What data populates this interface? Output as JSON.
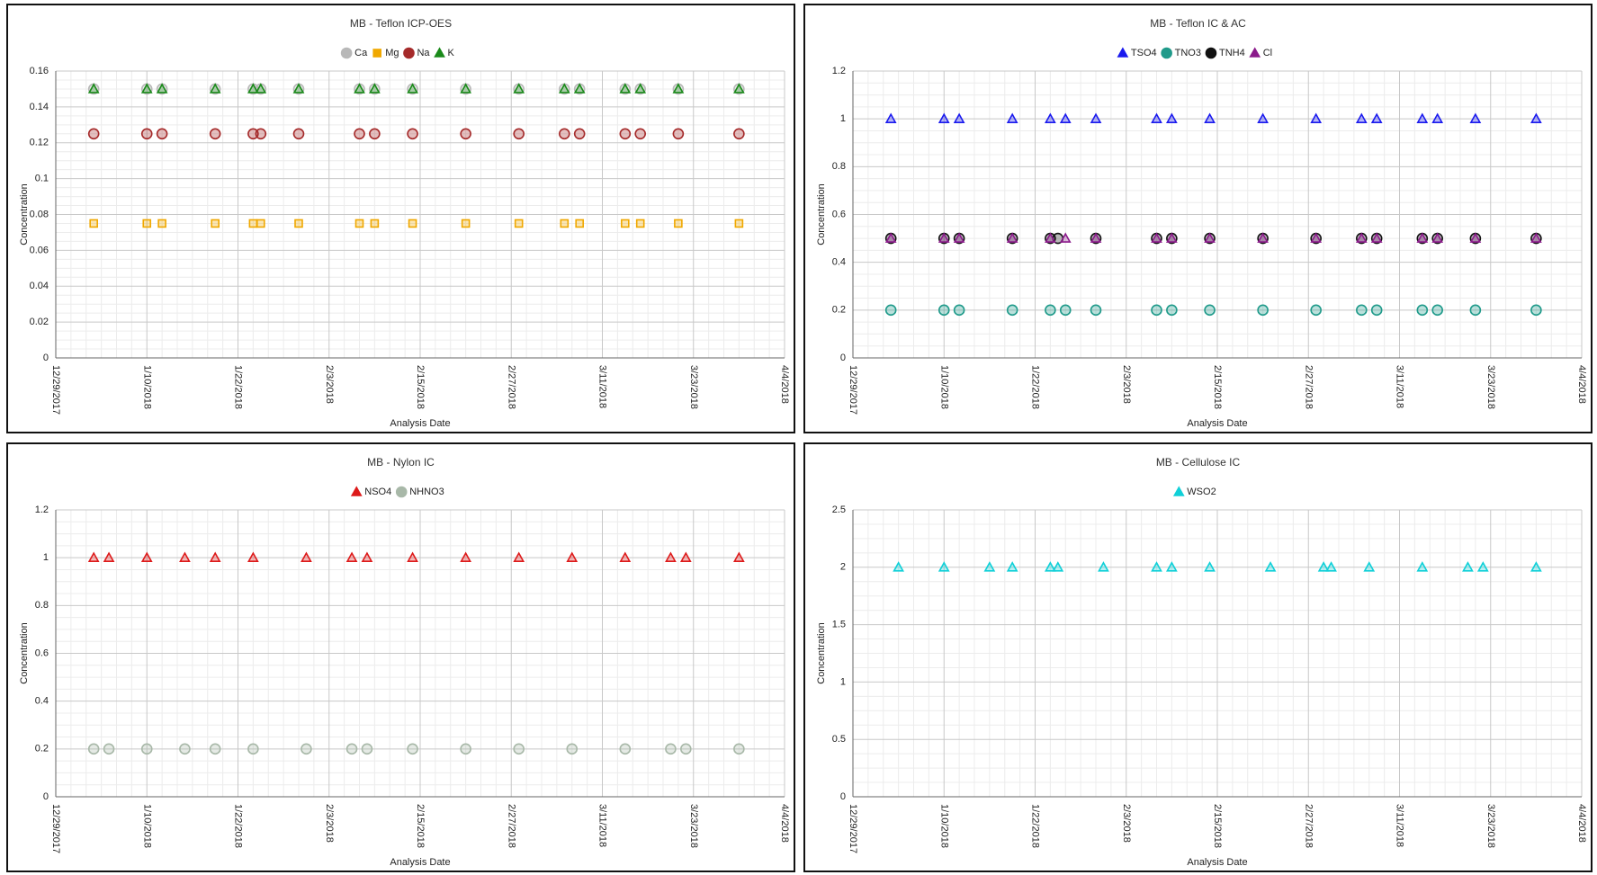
{
  "chart_data": [
    {
      "type": "scatter",
      "title": "MB - Teflon ICP-OES",
      "x_label": "Analysis Date",
      "y_label": "Concentration",
      "x": [
        "1/3/2018",
        "1/10/2018",
        "1/12/2018",
        "1/19/2018",
        "1/24/2018",
        "1/25/2018",
        "1/30/2018",
        "2/7/2018",
        "2/9/2018",
        "2/14/2018",
        "2/21/2018",
        "2/28/2018",
        "3/6/2018",
        "3/8/2018",
        "3/14/2018",
        "3/16/2018",
        "3/21/2018",
        "3/29/2018"
      ],
      "series": [
        {
          "name": "Ca",
          "color": "#b8b8b8",
          "marker": "circle",
          "values": [
            0.15,
            0.15,
            0.15,
            0.15,
            0.15,
            0.15,
            0.15,
            0.15,
            0.15,
            0.15,
            0.15,
            0.15,
            0.15,
            0.15,
            0.15,
            0.15,
            0.15,
            0.15
          ]
        },
        {
          "name": "Mg",
          "color": "#f0a800",
          "marker": "square",
          "values": [
            0.075,
            0.075,
            0.075,
            0.075,
            0.075,
            0.075,
            0.075,
            0.075,
            0.075,
            0.075,
            0.075,
            0.075,
            0.075,
            0.075,
            0.075,
            0.075,
            0.075,
            0.075
          ]
        },
        {
          "name": "Na",
          "color": "#a52a2a",
          "marker": "circle",
          "values": [
            0.125,
            0.125,
            0.125,
            0.125,
            0.125,
            0.125,
            0.125,
            0.125,
            0.125,
            0.125,
            0.125,
            0.125,
            0.125,
            0.125,
            0.125,
            0.125,
            0.125,
            0.125
          ]
        },
        {
          "name": "K",
          "color": "#1a8a1a",
          "marker": "triangle",
          "values": [
            0.15,
            0.15,
            0.15,
            0.15,
            0.15,
            0.15,
            0.15,
            0.15,
            0.15,
            0.15,
            0.15,
            0.15,
            0.15,
            0.15,
            0.15,
            0.15,
            0.15,
            0.15
          ]
        }
      ],
      "xlim": [
        "12/29/2017",
        "4/4/2018"
      ],
      "xticks": [
        "12/29/2017",
        "1/10/2018",
        "1/22/2018",
        "2/3/2018",
        "2/15/2018",
        "2/27/2018",
        "3/11/2018",
        "3/23/2018",
        "4/4/2018"
      ],
      "ylim": [
        0,
        0.16
      ],
      "yticks": [
        0,
        0.02,
        0.04,
        0.06,
        0.08,
        0.1,
        0.12,
        0.14,
        0.16
      ],
      "grid": true
    },
    {
      "type": "scatter",
      "title": "MB - Teflon IC & AC",
      "x_label": "Analysis Date",
      "y_label": "Concentration",
      "x": [
        "1/3/2018",
        "1/10/2018",
        "1/12/2018",
        "1/19/2018",
        "1/24/2018",
        "1/25/2018",
        "1/26/2018",
        "1/30/2018",
        "2/7/2018",
        "2/9/2018",
        "2/14/2018",
        "2/21/2018",
        "2/28/2018",
        "3/6/2018",
        "3/8/2018",
        "3/14/2018",
        "3/16/2018",
        "3/21/2018",
        "3/29/2018"
      ],
      "series": [
        {
          "name": "TSO4",
          "color": "#1a1aee",
          "marker": "triangle",
          "values": [
            1,
            1,
            1,
            1,
            1,
            null,
            1,
            1,
            1,
            1,
            1,
            1,
            1,
            1,
            1,
            1,
            1,
            1,
            1
          ]
        },
        {
          "name": "TNO3",
          "color": "#1f9a8a",
          "marker": "circle",
          "values": [
            0.2,
            0.2,
            0.2,
            0.2,
            0.2,
            null,
            0.2,
            0.2,
            0.2,
            0.2,
            0.2,
            0.2,
            0.2,
            0.2,
            0.2,
            0.2,
            0.2,
            0.2,
            0.2
          ]
        },
        {
          "name": "TNH4",
          "color": "#111111",
          "marker": "circle",
          "values": [
            0.5,
            0.5,
            0.5,
            0.5,
            0.5,
            0.5,
            null,
            0.5,
            0.5,
            0.5,
            0.5,
            0.5,
            0.5,
            0.5,
            0.5,
            0.5,
            0.5,
            0.5,
            0.5
          ]
        },
        {
          "name": "Cl",
          "color": "#8b1a8b",
          "marker": "triangle",
          "values": [
            0.5,
            0.5,
            0.5,
            0.5,
            0.5,
            null,
            0.5,
            0.5,
            0.5,
            0.5,
            0.5,
            0.5,
            0.5,
            0.5,
            0.5,
            0.5,
            0.5,
            0.5,
            0.5
          ]
        }
      ],
      "xlim": [
        "12/29/2017",
        "4/4/2018"
      ],
      "xticks": [
        "12/29/2017",
        "1/10/2018",
        "1/22/2018",
        "2/3/2018",
        "2/15/2018",
        "2/27/2018",
        "3/11/2018",
        "3/23/2018",
        "4/4/2018"
      ],
      "ylim": [
        0,
        1.2
      ],
      "yticks": [
        0,
        0.2,
        0.4,
        0.6,
        0.8,
        1,
        1.2
      ],
      "grid": true
    },
    {
      "type": "scatter",
      "title": "MB - Nylon IC",
      "x_label": "Analysis Date",
      "y_label": "Concentration",
      "x": [
        "1/3/2018",
        "1/5/2018",
        "1/10/2018",
        "1/15/2018",
        "1/19/2018",
        "1/24/2018",
        "1/31/2018",
        "2/6/2018",
        "2/8/2018",
        "2/14/2018",
        "2/21/2018",
        "2/28/2018",
        "3/7/2018",
        "3/14/2018",
        "3/20/2018",
        "3/22/2018",
        "3/29/2018"
      ],
      "series": [
        {
          "name": "NSO4",
          "color": "#dd1a1a",
          "marker": "triangle",
          "values": [
            1,
            1,
            1,
            1,
            1,
            1,
            1,
            1,
            1,
            1,
            1,
            1,
            1,
            1,
            1,
            1,
            1
          ]
        },
        {
          "name": "NHNO3",
          "color": "#a8b8a8",
          "marker": "circle",
          "values": [
            0.2,
            0.2,
            0.2,
            0.2,
            0.2,
            0.2,
            0.2,
            0.2,
            0.2,
            0.2,
            0.2,
            0.2,
            0.2,
            0.2,
            0.2,
            0.2,
            0.2
          ]
        }
      ],
      "xlim": [
        "12/29/2017",
        "4/4/2018"
      ],
      "xticks": [
        "12/29/2017",
        "1/10/2018",
        "1/22/2018",
        "2/3/2018",
        "2/15/2018",
        "2/27/2018",
        "3/11/2018",
        "3/23/2018",
        "4/4/2018"
      ],
      "ylim": [
        0,
        1.2
      ],
      "yticks": [
        0,
        0.2,
        0.4,
        0.6,
        0.8,
        1,
        1.2
      ],
      "grid": true
    },
    {
      "type": "scatter",
      "title": "MB - Cellulose IC",
      "x_label": "Analysis Date",
      "y_label": "Concentration",
      "x": [
        "1/4/2018",
        "1/10/2018",
        "1/16/2018",
        "1/19/2018",
        "1/24/2018",
        "1/25/2018",
        "1/31/2018",
        "2/7/2018",
        "2/9/2018",
        "2/14/2018",
        "2/22/2018",
        "3/1/2018",
        "3/2/2018",
        "3/7/2018",
        "3/14/2018",
        "3/20/2018",
        "3/22/2018",
        "3/29/2018"
      ],
      "series": [
        {
          "name": "WSO2",
          "color": "#10d0d8",
          "marker": "triangle",
          "values": [
            2,
            2,
            2,
            2,
            2,
            2,
            2,
            2,
            2,
            2,
            2,
            2,
            2,
            2,
            2,
            2,
            2,
            2
          ]
        }
      ],
      "xlim": [
        "12/29/2017",
        "4/4/2018"
      ],
      "xticks": [
        "12/29/2017",
        "1/10/2018",
        "1/22/2018",
        "2/3/2018",
        "2/15/2018",
        "2/27/2018",
        "3/11/2018",
        "3/23/2018",
        "4/4/2018"
      ],
      "ylim": [
        0,
        2.5
      ],
      "yticks": [
        0,
        0.5,
        1,
        1.5,
        2,
        2.5
      ],
      "grid": true
    }
  ]
}
